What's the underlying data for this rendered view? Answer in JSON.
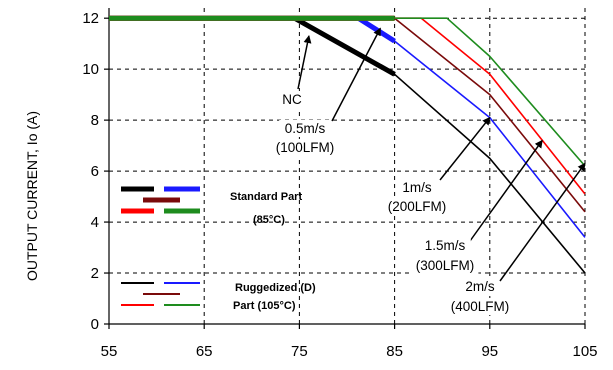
{
  "chart_data": {
    "type": "line",
    "xlabel": "",
    "ylabel": "OUTPUT CURRENT, Io (A)",
    "xlim": [
      55,
      105
    ],
    "ylim": [
      0,
      12.4
    ],
    "xticks": [
      55,
      65,
      75,
      85,
      95,
      105
    ],
    "yticks": [
      0,
      2,
      4,
      6,
      8,
      10,
      12
    ],
    "grid": "dashed",
    "series": [
      {
        "key": "std_nc",
        "color": "#000000",
        "style": "thick",
        "x": [
          55,
          74.5,
          85
        ],
        "y": [
          12,
          12,
          9.8
        ]
      },
      {
        "key": "std_05",
        "color": "#1a1aff",
        "style": "thick",
        "x": [
          55,
          81.2,
          85
        ],
        "y": [
          12,
          12,
          11.1
        ]
      },
      {
        "key": "std_1",
        "color": "#7a0a0a",
        "style": "thick",
        "x": [
          55,
          85
        ],
        "y": [
          12,
          12
        ]
      },
      {
        "key": "std_15",
        "color": "#ff0000",
        "style": "thick",
        "x": [
          55,
          85
        ],
        "y": [
          12,
          12
        ]
      },
      {
        "key": "std_2",
        "color": "#1e8c1e",
        "style": "thick",
        "x": [
          55,
          85
        ],
        "y": [
          12,
          12
        ]
      },
      {
        "key": "rug_nc",
        "color": "#000000",
        "style": "thin",
        "x": [
          85,
          95,
          105
        ],
        "y": [
          9.8,
          6.5,
          2.0
        ]
      },
      {
        "key": "rug_05",
        "color": "#1a1aff",
        "style": "thin",
        "x": [
          85,
          95,
          105
        ],
        "y": [
          11.1,
          8.1,
          3.4
        ]
      },
      {
        "key": "rug_1",
        "color": "#7a0a0a",
        "style": "thin",
        "x": [
          85,
          95,
          105
        ],
        "y": [
          12,
          9.0,
          4.4
        ]
      },
      {
        "key": "rug_15",
        "color": "#ff0000",
        "style": "thin",
        "x": [
          85,
          87.8,
          95,
          105
        ],
        "y": [
          12,
          12,
          9.8,
          5.1
        ]
      },
      {
        "key": "rug_2",
        "color": "#1e8c1e",
        "style": "thin",
        "x": [
          85,
          90.5,
          95,
          105
        ],
        "y": [
          12,
          12,
          10.5,
          6.2
        ]
      }
    ],
    "annotations": [
      {
        "lines": [
          "NC"
        ],
        "tip_x": 76,
        "tip_y": 11.3
      },
      {
        "lines": [
          "0.5m/s",
          "(100LFM)"
        ],
        "tip_x": 83.5,
        "tip_y": 11.6
      },
      {
        "lines": [
          "1m/s",
          "(200LFM)"
        ],
        "tip_x": 95,
        "tip_y": 8.1
      },
      {
        "lines": [
          "1.5m/s",
          "(300LFM)"
        ],
        "tip_x": 100.5,
        "tip_y": 7.2
      },
      {
        "lines": [
          "2m/s",
          "(400LFM)"
        ],
        "tip_x": 105,
        "tip_y": 6.3
      }
    ],
    "legend": {
      "placement": "left",
      "groups": [
        {
          "lines": [
            "Standard Part",
            "(85°C)"
          ],
          "style": "thick"
        },
        {
          "lines": [
            "Ruggedized (D)",
            "Part (105°C)"
          ],
          "style": "thin"
        }
      ]
    }
  }
}
